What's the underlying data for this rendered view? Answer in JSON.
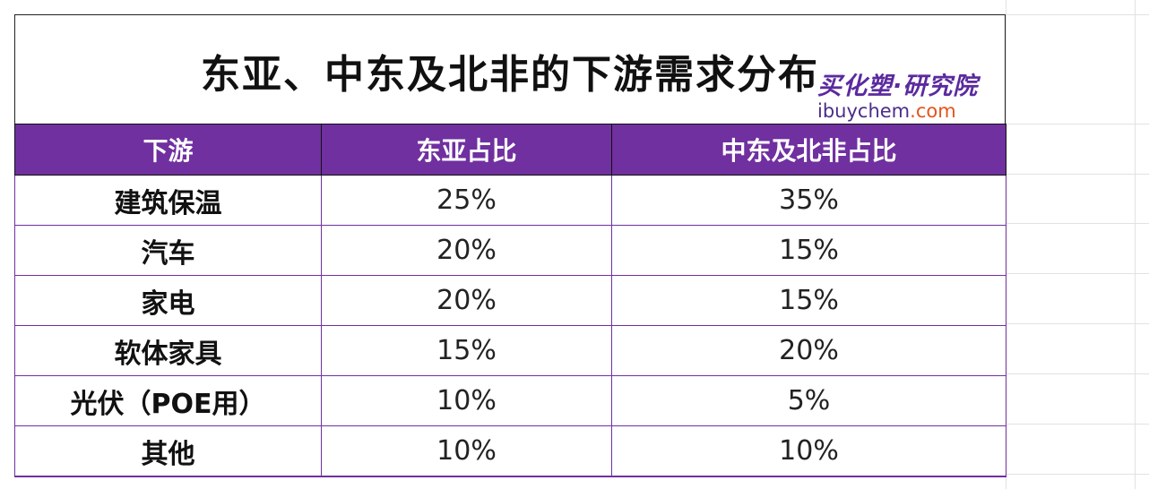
{
  "title": "东亚、中东及北非的下游需求分布",
  "logo": {
    "cn": "买化塑·研究院",
    "en_main": "ibuychem",
    "en_tld": ".com"
  },
  "colors": {
    "header_bg": "#7030a0",
    "border": "#7030a0",
    "logo_purple": "#5b2a9e",
    "logo_orange": "#e5541b"
  },
  "chart_data": {
    "type": "table",
    "title": "东亚、中东及北非的下游需求分布",
    "columns": [
      "下游",
      "东亚占比",
      "中东及北非占比"
    ],
    "rows": [
      [
        "建筑保温",
        "25%",
        "35%"
      ],
      [
        "汽车",
        "20%",
        "15%"
      ],
      [
        "家电",
        "20%",
        "15%"
      ],
      [
        "软体家具",
        "15%",
        "20%"
      ],
      [
        "光伏（POE用）",
        "10%",
        "5%"
      ],
      [
        "其他",
        "10%",
        "10%"
      ]
    ]
  }
}
